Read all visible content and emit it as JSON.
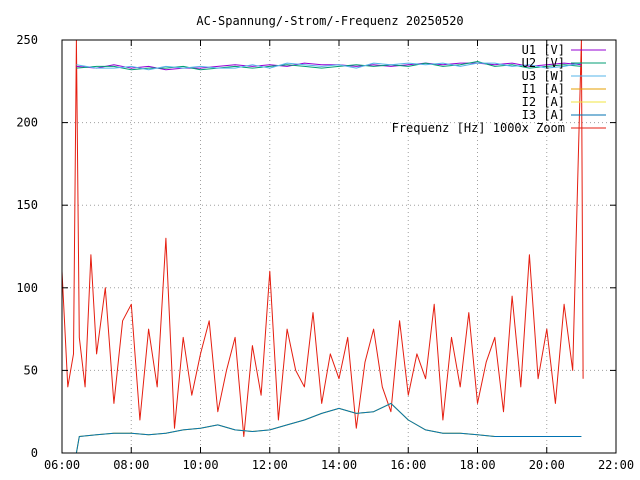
{
  "chart_data": {
    "type": "line",
    "title": "AC-Spannung/-Strom/-Frequenz 20250520",
    "xlabel": "",
    "ylabel": "",
    "xlim": [
      "06:00",
      "22:00"
    ],
    "ylim": [
      0,
      250
    ],
    "x_ticks": [
      "06:00",
      "08:00",
      "10:00",
      "12:00",
      "14:00",
      "16:00",
      "18:00",
      "20:00",
      "22:00"
    ],
    "y_ticks": [
      "0",
      "50",
      "100",
      "150",
      "200",
      "250"
    ],
    "grid": true,
    "legend": "top-right",
    "series": [
      {
        "name": "U1 [V]",
        "color": "#9400d3",
        "x": [
          "06:25",
          "07:00",
          "07:30",
          "08:00",
          "08:30",
          "09:00",
          "09:30",
          "10:00",
          "10:30",
          "11:00",
          "11:30",
          "12:00",
          "12:30",
          "13:00",
          "13:30",
          "14:00",
          "14:30",
          "15:00",
          "15:30",
          "16:00",
          "16:30",
          "17:00",
          "17:30",
          "18:00",
          "18:30",
          "19:00",
          "19:30",
          "20:00",
          "20:30",
          "21:00"
        ],
        "y": [
          234,
          233,
          235,
          233,
          234,
          232,
          233,
          233,
          234,
          235,
          234,
          235,
          234,
          236,
          235,
          235,
          234,
          235,
          234,
          235,
          236,
          235,
          236,
          236,
          235,
          236,
          234,
          235,
          236,
          235
        ]
      },
      {
        "name": "U2 [V]",
        "color": "#009e73",
        "x": [
          "06:25",
          "07:00",
          "07:30",
          "08:00",
          "08:30",
          "09:00",
          "09:30",
          "10:00",
          "10:30",
          "11:00",
          "11:30",
          "12:00",
          "12:30",
          "13:00",
          "13:30",
          "14:00",
          "14:30",
          "15:00",
          "15:30",
          "16:00",
          "16:30",
          "17:00",
          "17:30",
          "18:00",
          "18:30",
          "19:00",
          "19:30",
          "20:00",
          "20:30",
          "21:00"
        ],
        "y": [
          233,
          234,
          234,
          232,
          233,
          233,
          234,
          232,
          233,
          234,
          233,
          234,
          235,
          234,
          233,
          234,
          235,
          234,
          235,
          234,
          236,
          234,
          235,
          237,
          234,
          235,
          233,
          234,
          235,
          234
        ]
      },
      {
        "name": "U3 [W]",
        "color": "#56b4e9",
        "x": [
          "06:25",
          "07:00",
          "07:30",
          "08:00",
          "08:30",
          "09:00",
          "09:30",
          "10:00",
          "10:30",
          "11:00",
          "11:30",
          "12:00",
          "12:30",
          "13:00",
          "13:30",
          "14:00",
          "14:30",
          "15:00",
          "15:30",
          "16:00",
          "16:30",
          "17:00",
          "17:30",
          "18:00",
          "18:30",
          "19:00",
          "19:30",
          "20:00",
          "20:30",
          "21:00"
        ],
        "y": [
          235,
          233,
          233,
          234,
          232,
          234,
          233,
          234,
          233,
          233,
          235,
          233,
          236,
          235,
          234,
          235,
          233,
          236,
          235,
          236,
          235,
          236,
          234,
          236,
          236,
          234,
          235,
          233,
          234,
          236
        ]
      },
      {
        "name": "I1 [A]",
        "color": "#e69f00",
        "x": [
          "06:25",
          "06:30",
          "07:00",
          "07:30",
          "08:00",
          "08:30",
          "09:00",
          "09:30",
          "10:00",
          "10:30",
          "11:00",
          "11:30",
          "12:00",
          "12:30",
          "13:00",
          "13:30",
          "14:00",
          "14:30",
          "15:00",
          "15:30",
          "16:00",
          "16:30",
          "17:00",
          "17:30",
          "18:00",
          "18:30",
          "19:00",
          "19:30",
          "20:00",
          "20:30",
          "21:00"
        ],
        "y": [
          0,
          10,
          11,
          12,
          12,
          11,
          12,
          14,
          15,
          17,
          14,
          13,
          14,
          17,
          20,
          24,
          27,
          24,
          25,
          30,
          20,
          14,
          12,
          12,
          11,
          10,
          10,
          10,
          10,
          10,
          10
        ]
      },
      {
        "name": "I2 [A]",
        "color": "#f0e442",
        "x": [
          "06:25",
          "06:30",
          "07:00",
          "07:30",
          "08:00",
          "08:30",
          "09:00",
          "09:30",
          "10:00",
          "10:30",
          "11:00",
          "11:30",
          "12:00",
          "12:30",
          "13:00",
          "13:30",
          "14:00",
          "14:30",
          "15:00",
          "15:30",
          "16:00",
          "16:30",
          "17:00",
          "17:30",
          "18:00",
          "18:30",
          "19:00",
          "19:30",
          "20:00",
          "20:30",
          "21:00"
        ],
        "y": [
          0,
          10,
          11,
          12,
          12,
          11,
          12,
          14,
          15,
          17,
          14,
          13,
          14,
          17,
          20,
          24,
          27,
          24,
          25,
          30,
          20,
          14,
          12,
          12,
          11,
          10,
          10,
          10,
          10,
          10,
          10
        ]
      },
      {
        "name": "I3 [A]",
        "color": "#0072b2",
        "x": [
          "06:25",
          "06:30",
          "07:00",
          "07:30",
          "08:00",
          "08:30",
          "09:00",
          "09:30",
          "10:00",
          "10:30",
          "11:00",
          "11:30",
          "12:00",
          "12:30",
          "13:00",
          "13:30",
          "14:00",
          "14:30",
          "15:00",
          "15:30",
          "16:00",
          "16:30",
          "17:00",
          "17:30",
          "18:00",
          "18:30",
          "19:00",
          "19:30",
          "20:00",
          "20:30",
          "21:00"
        ],
        "y": [
          0,
          10,
          11,
          12,
          12,
          11,
          12,
          14,
          15,
          17,
          14,
          13,
          14,
          17,
          20,
          24,
          27,
          24,
          25,
          30,
          20,
          14,
          12,
          12,
          11,
          10,
          10,
          10,
          10,
          10,
          10
        ]
      },
      {
        "name": "Frequenz [Hz] 1000x Zoom",
        "color": "#e51e10",
        "x": [
          "06:00",
          "06:10",
          "06:20",
          "06:25",
          "06:30",
          "06:40",
          "06:50",
          "07:00",
          "07:15",
          "07:30",
          "07:45",
          "08:00",
          "08:15",
          "08:30",
          "08:45",
          "09:00",
          "09:15",
          "09:30",
          "09:45",
          "10:00",
          "10:15",
          "10:30",
          "10:45",
          "11:00",
          "11:15",
          "11:30",
          "11:45",
          "12:00",
          "12:15",
          "12:30",
          "12:45",
          "13:00",
          "13:15",
          "13:30",
          "13:45",
          "14:00",
          "14:15",
          "14:30",
          "14:45",
          "15:00",
          "15:15",
          "15:30",
          "15:45",
          "16:00",
          "16:15",
          "16:30",
          "16:45",
          "17:00",
          "17:15",
          "17:30",
          "17:45",
          "18:00",
          "18:15",
          "18:30",
          "18:45",
          "19:00",
          "19:15",
          "19:30",
          "19:45",
          "20:00",
          "20:15",
          "20:30",
          "20:45",
          "21:00",
          "21:03"
        ],
        "y": [
          110,
          40,
          60,
          250,
          70,
          40,
          120,
          60,
          100,
          30,
          80,
          90,
          20,
          75,
          40,
          130,
          15,
          70,
          35,
          60,
          80,
          25,
          50,
          70,
          10,
          65,
          35,
          110,
          20,
          75,
          50,
          40,
          85,
          30,
          60,
          45,
          70,
          15,
          55,
          75,
          40,
          25,
          80,
          35,
          60,
          45,
          90,
          20,
          70,
          40,
          85,
          30,
          55,
          70,
          25,
          95,
          40,
          120,
          45,
          75,
          30,
          90,
          50,
          250,
          45
        ]
      }
    ]
  }
}
